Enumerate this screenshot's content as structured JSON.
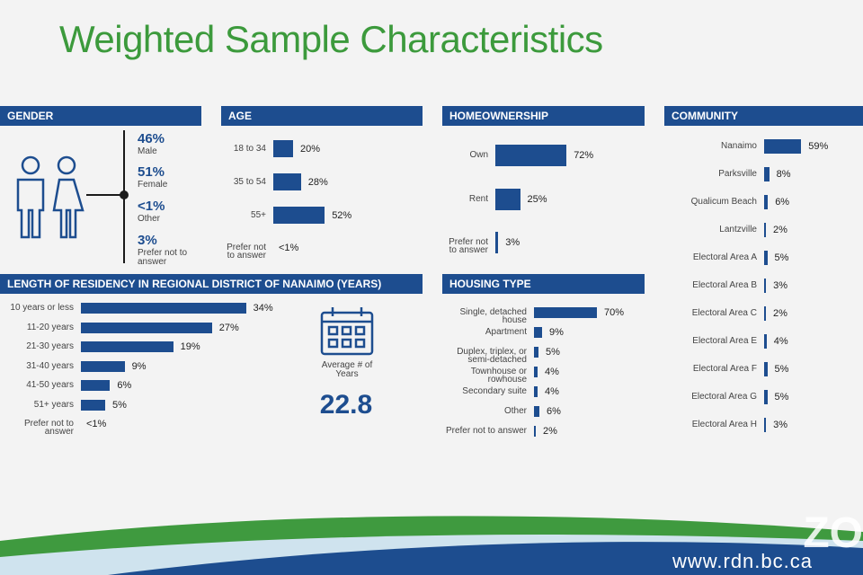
{
  "title": "Weighted Sample Characteristics",
  "footer": {
    "url": "www.rdn.bc.ca",
    "watermark": "ZO"
  },
  "colors": {
    "bar": "#1d4d8f",
    "title": "#3c9a3c",
    "header": "#1d4d8f"
  },
  "chart_data": [
    {
      "type": "table",
      "section": "GENDER",
      "items": [
        {
          "value": "46%",
          "label": "Male"
        },
        {
          "value": "51%",
          "label": "Female"
        },
        {
          "value": "<1%",
          "label": "Other"
        },
        {
          "value": "3%",
          "label": "Prefer not to answer"
        }
      ]
    },
    {
      "type": "bar",
      "section": "AGE",
      "categories": [
        "18 to 34",
        "35 to 54",
        "55+",
        "Prefer not to answer"
      ],
      "values": [
        20,
        28,
        52,
        0.5
      ],
      "labels": [
        "20%",
        "28%",
        "52%",
        "<1%"
      ]
    },
    {
      "type": "bar",
      "section": "HOMEOWNERSHIP",
      "categories": [
        "Own",
        "Rent",
        "Prefer not to answer"
      ],
      "values": [
        72,
        25,
        3
      ],
      "labels": [
        "72%",
        "25%",
        "3%"
      ]
    },
    {
      "type": "bar",
      "section": "COMMUNITY",
      "categories": [
        "Nanaimo",
        "Parksville",
        "Qualicum Beach",
        "Lantzville",
        "Electoral Area A",
        "Electoral Area B",
        "Electoral Area C",
        "Electoral Area E",
        "Electoral Area F",
        "Electoral Area G",
        "Electoral Area H"
      ],
      "values": [
        59,
        8,
        6,
        2,
        5,
        3,
        2,
        4,
        5,
        5,
        3
      ],
      "labels": [
        "59%",
        "8%",
        "6%",
        "2%",
        "5%",
        "3%",
        "2%",
        "4%",
        "5%",
        "5%",
        "3%"
      ]
    },
    {
      "type": "bar",
      "section": "LENGTH OF RESIDENCY IN REGIONAL DISTRICT OF NANAIMO (YEARS)",
      "categories": [
        "10 years or less",
        "11-20 years",
        "21-30 years",
        "31-40 years",
        "41-50 years",
        "51+ years",
        "Prefer not to answer"
      ],
      "values": [
        34,
        27,
        19,
        9,
        6,
        5,
        0.5
      ],
      "labels": [
        "34%",
        "27%",
        "19%",
        "9%",
        "6%",
        "5%",
        "<1%"
      ],
      "average_label": "Average # of Years",
      "average_value": "22.8"
    },
    {
      "type": "bar",
      "section": "HOUSING TYPE",
      "categories": [
        "Single, detached house",
        "Apartment",
        "Duplex, triplex, or semi-detached",
        "Townhouse or rowhouse",
        "Secondary suite",
        "Other",
        "Prefer not to answer"
      ],
      "values": [
        70,
        9,
        5,
        4,
        4,
        6,
        2
      ],
      "labels": [
        "70%",
        "9%",
        "5%",
        "4%",
        "4%",
        "6%",
        "2%"
      ]
    }
  ]
}
